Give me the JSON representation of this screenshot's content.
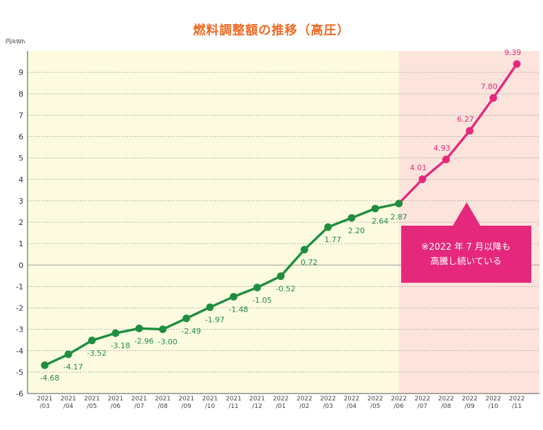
{
  "title": "燃料調整額の推移（高圧）",
  "y_unit": "円/kWh",
  "annotation": {
    "line1": "※2022 年 7 月以降も",
    "line2": "高騰し続いている"
  },
  "colors": {
    "actual": "#1f8f3f",
    "forecast": "#e6287c",
    "bg_actual": "#fcfbe0",
    "bg_forecast": "#fce4dc",
    "title": "#ee6a24"
  },
  "chart_data": {
    "type": "line",
    "title": "燃料調整額の推移（高圧）",
    "ylabel": "円/kWh",
    "ylim": [
      -6,
      10
    ],
    "yticks": [
      9,
      8,
      7,
      6,
      5,
      4,
      3,
      2,
      1,
      0,
      -1,
      -2,
      -3,
      -4,
      -5,
      -6
    ],
    "categories": [
      [
        "2021",
        "/03"
      ],
      [
        "2021",
        "/04"
      ],
      [
        "2021",
        "/05"
      ],
      [
        "2021",
        "/06"
      ],
      [
        "2021",
        "/07"
      ],
      [
        "2021",
        "/08"
      ],
      [
        "2021",
        "/09"
      ],
      [
        "2021",
        "/10"
      ],
      [
        "2021",
        "/11"
      ],
      [
        "2021",
        "/12"
      ],
      [
        "2022",
        "/01"
      ],
      [
        "2022",
        "/02"
      ],
      [
        "2022",
        "/03"
      ],
      [
        "2022",
        "/04"
      ],
      [
        "2022",
        "/05"
      ],
      [
        "2022",
        "/06"
      ],
      [
        "2022",
        "/07"
      ],
      [
        "2022",
        "/08"
      ],
      [
        "2022",
        "/09"
      ],
      [
        "2022",
        "/10"
      ],
      [
        "2022",
        "/11"
      ]
    ],
    "values": [
      -4.68,
      -4.17,
      -3.52,
      -3.18,
      -2.96,
      -3.0,
      -2.49,
      -1.97,
      -1.48,
      -1.05,
      -0.52,
      0.72,
      1.77,
      2.2,
      2.64,
      2.87,
      4.01,
      4.93,
      6.27,
      7.8,
      9.39
    ],
    "labels": [
      "-4.68",
      "-4.17",
      "-3.52",
      "-3.18",
      "-2.96",
      "-3.00",
      "-2.49",
      "-1.97",
      "-1.48",
      "-1.05",
      "-0.52",
      "0.72",
      "1.77",
      "2.20",
      "2.64",
      "2.87",
      "4.01",
      "4.93",
      "6.27",
      "7.80",
      "9.39"
    ],
    "split_after_index": 15,
    "grid": true
  }
}
